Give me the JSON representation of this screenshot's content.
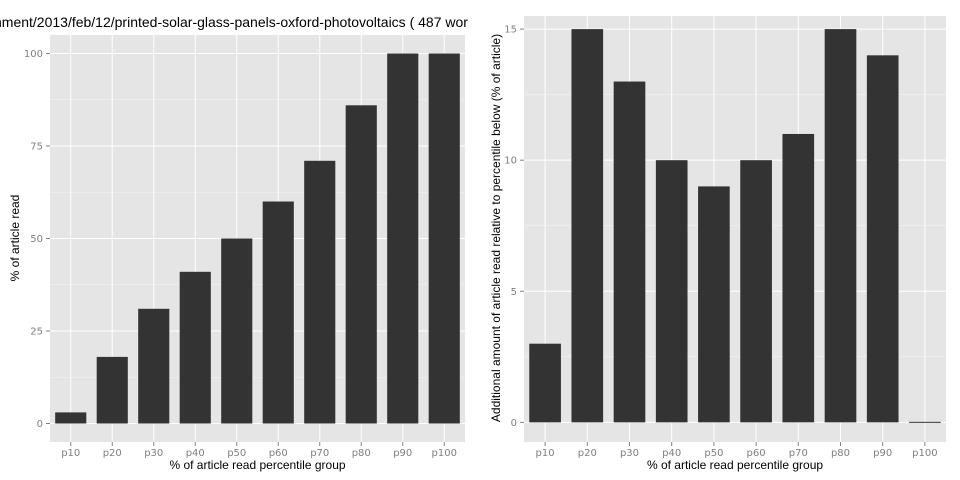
{
  "page_title": "nment/2013/feb/12/printed-solar-glass-panels-oxford-photovoltaics ( 487 wor",
  "chart_data": [
    {
      "type": "bar",
      "title": "",
      "xlabel": "% of article read percentile group",
      "ylabel": "% of article read",
      "categories": [
        "p10",
        "p20",
        "p30",
        "p40",
        "p50",
        "p60",
        "p70",
        "p80",
        "p90",
        "p100"
      ],
      "values": [
        3,
        18,
        31,
        41,
        50,
        60,
        71,
        86,
        100,
        100
      ],
      "ylim": [
        -5,
        105
      ],
      "yticks": [
        0,
        25,
        50,
        75,
        100
      ],
      "grid": true,
      "colors": {
        "bar": "#333333",
        "panel": "#e5e5e5"
      }
    },
    {
      "type": "bar",
      "title": "",
      "xlabel": "% of article read percentile group",
      "ylabel": "Additional amount of article read relative to percentile below (% of article)",
      "categories": [
        "p10",
        "p20",
        "p30",
        "p40",
        "p50",
        "p60",
        "p70",
        "p80",
        "p90",
        "p100"
      ],
      "values": [
        3,
        15,
        13,
        10,
        9,
        10,
        11,
        15,
        14,
        0
      ],
      "ylim": [
        -0.75,
        15.5
      ],
      "yticks": [
        0,
        5,
        10,
        15
      ],
      "grid": true,
      "colors": {
        "bar": "#333333",
        "panel": "#e5e5e5"
      }
    }
  ]
}
